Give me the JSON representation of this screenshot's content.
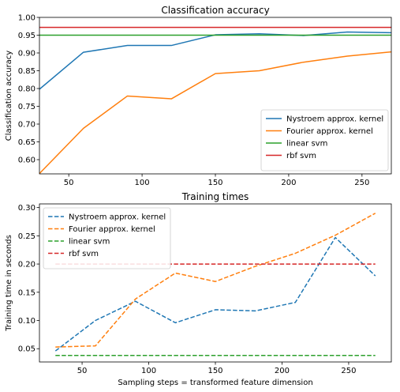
{
  "chart_data": [
    {
      "type": "line",
      "title": "Classification accuracy",
      "xlabel": "",
      "ylabel": "Classification accuracy",
      "xlim": [
        30,
        270
      ],
      "ylim": [
        0.56,
        1.0
      ],
      "xticks": [
        50,
        100,
        150,
        200,
        250
      ],
      "xtick_labels": [
        "50",
        "100",
        "150",
        "200",
        "250"
      ],
      "yticks": [
        0.6,
        0.65,
        0.7,
        0.75,
        0.8,
        0.85,
        0.9,
        0.95,
        1.0
      ],
      "ytick_labels": [
        "0.60",
        "0.65",
        "0.70",
        "0.75",
        "0.80",
        "0.85",
        "0.90",
        "0.95",
        "1.00"
      ],
      "grid": false,
      "legend_position": "lower-right",
      "series": [
        {
          "name": "Nystroem approx. kernel",
          "color": "#1f77b4",
          "dash": "solid",
          "x": [
            30,
            60,
            90,
            120,
            150,
            180,
            210,
            240,
            270
          ],
          "y": [
            0.798,
            0.902,
            0.921,
            0.921,
            0.951,
            0.954,
            0.949,
            0.959,
            0.957
          ]
        },
        {
          "name": "Fourier approx. kernel",
          "color": "#ff7f0e",
          "dash": "solid",
          "x": [
            30,
            60,
            90,
            120,
            150,
            180,
            210,
            240,
            270
          ],
          "y": [
            0.561,
            0.688,
            0.779,
            0.771,
            0.842,
            0.85,
            0.874,
            0.891,
            0.903
          ]
        },
        {
          "name": "linear svm",
          "color": "#2ca02c",
          "dash": "solid",
          "x": [
            30,
            270
          ],
          "y": [
            0.95,
            0.95
          ]
        },
        {
          "name": "rbf svm",
          "color": "#d62728",
          "dash": "solid",
          "x": [
            30,
            270
          ],
          "y": [
            0.972,
            0.972
          ]
        }
      ]
    },
    {
      "type": "line",
      "title": "Training times",
      "xlabel": "Sampling steps = transformed feature dimension",
      "ylabel": "Training time in seconds",
      "xlim": [
        18,
        282
      ],
      "ylim": [
        0.0265,
        0.3065
      ],
      "xticks": [
        50,
        100,
        150,
        200,
        250
      ],
      "xtick_labels": [
        "50",
        "100",
        "150",
        "200",
        "250"
      ],
      "yticks": [
        0.05,
        0.1,
        0.15,
        0.2,
        0.25,
        0.3
      ],
      "ytick_labels": [
        "0.05",
        "0.10",
        "0.15",
        "0.20",
        "0.25",
        "0.30"
      ],
      "grid": false,
      "legend_position": "upper-left",
      "series": [
        {
          "name": "Nystroem approx. kernel",
          "color": "#1f77b4",
          "dash": "dashed",
          "x": [
            30,
            60,
            90,
            120,
            150,
            180,
            210,
            240,
            270
          ],
          "y": [
            0.046,
            0.1,
            0.134,
            0.096,
            0.119,
            0.117,
            0.132,
            0.247,
            0.179
          ]
        },
        {
          "name": "Fourier approx. kernel",
          "color": "#ff7f0e",
          "dash": "dashed",
          "x": [
            30,
            60,
            90,
            120,
            150,
            180,
            210,
            240,
            270
          ],
          "y": [
            0.053,
            0.055,
            0.138,
            0.184,
            0.169,
            0.196,
            0.219,
            0.251,
            0.29
          ]
        },
        {
          "name": "linear svm",
          "color": "#2ca02c",
          "dash": "dashed",
          "x": [
            30,
            270
          ],
          "y": [
            0.038,
            0.038
          ]
        },
        {
          "name": "rbf svm",
          "color": "#d62728",
          "dash": "dashed",
          "x": [
            30,
            270
          ],
          "y": [
            0.2,
            0.2
          ]
        }
      ]
    }
  ]
}
